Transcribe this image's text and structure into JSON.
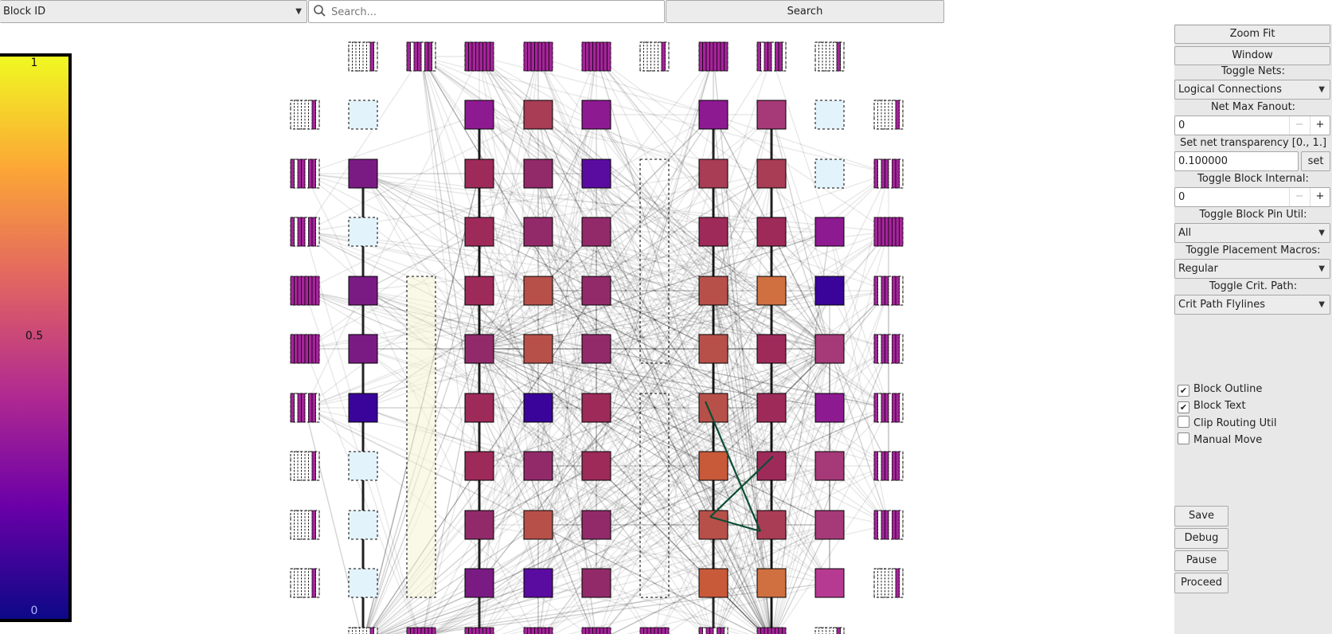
{
  "toolbar": {
    "color_mode": "Block ID",
    "search_placeholder": "Search...",
    "search_value": "",
    "search_label": "Search"
  },
  "legend": {
    "max": "1",
    "mid": "0.5",
    "min": "0",
    "colors": [
      "#f0f921",
      "#fca636",
      "#e16462",
      "#b12a90",
      "#6a00a8",
      "#0d0887"
    ]
  },
  "panel": {
    "zoom_fit": "Zoom Fit",
    "window": "Window",
    "toggle_nets_label": "Toggle Nets:",
    "toggle_nets_value": "Logical Connections",
    "net_max_fanout_label": "Net Max Fanout:",
    "net_max_fanout_value": "0",
    "transparency_label": "Set net transparency [0., 1.]",
    "transparency_value": "0.100000",
    "set_label": "set",
    "block_internal_label": "Toggle Block Internal:",
    "block_internal_value": "0",
    "pin_util_label": "Toggle Block Pin Util:",
    "pin_util_value": "All",
    "placement_macros_label": "Toggle Placement Macros:",
    "placement_macros_value": "Regular",
    "crit_path_label": "Toggle Crit. Path:",
    "crit_path_value": "Crit Path Flylines",
    "checkboxes": [
      {
        "label": "Block Outline",
        "checked": true
      },
      {
        "label": "Block Text",
        "checked": true
      },
      {
        "label": "Clip Routing Util",
        "checked": false
      },
      {
        "label": "Manual Move",
        "checked": false
      }
    ],
    "save": "Save",
    "debug": "Debug",
    "pause": "Pause",
    "proceed": "Proceed"
  }
}
